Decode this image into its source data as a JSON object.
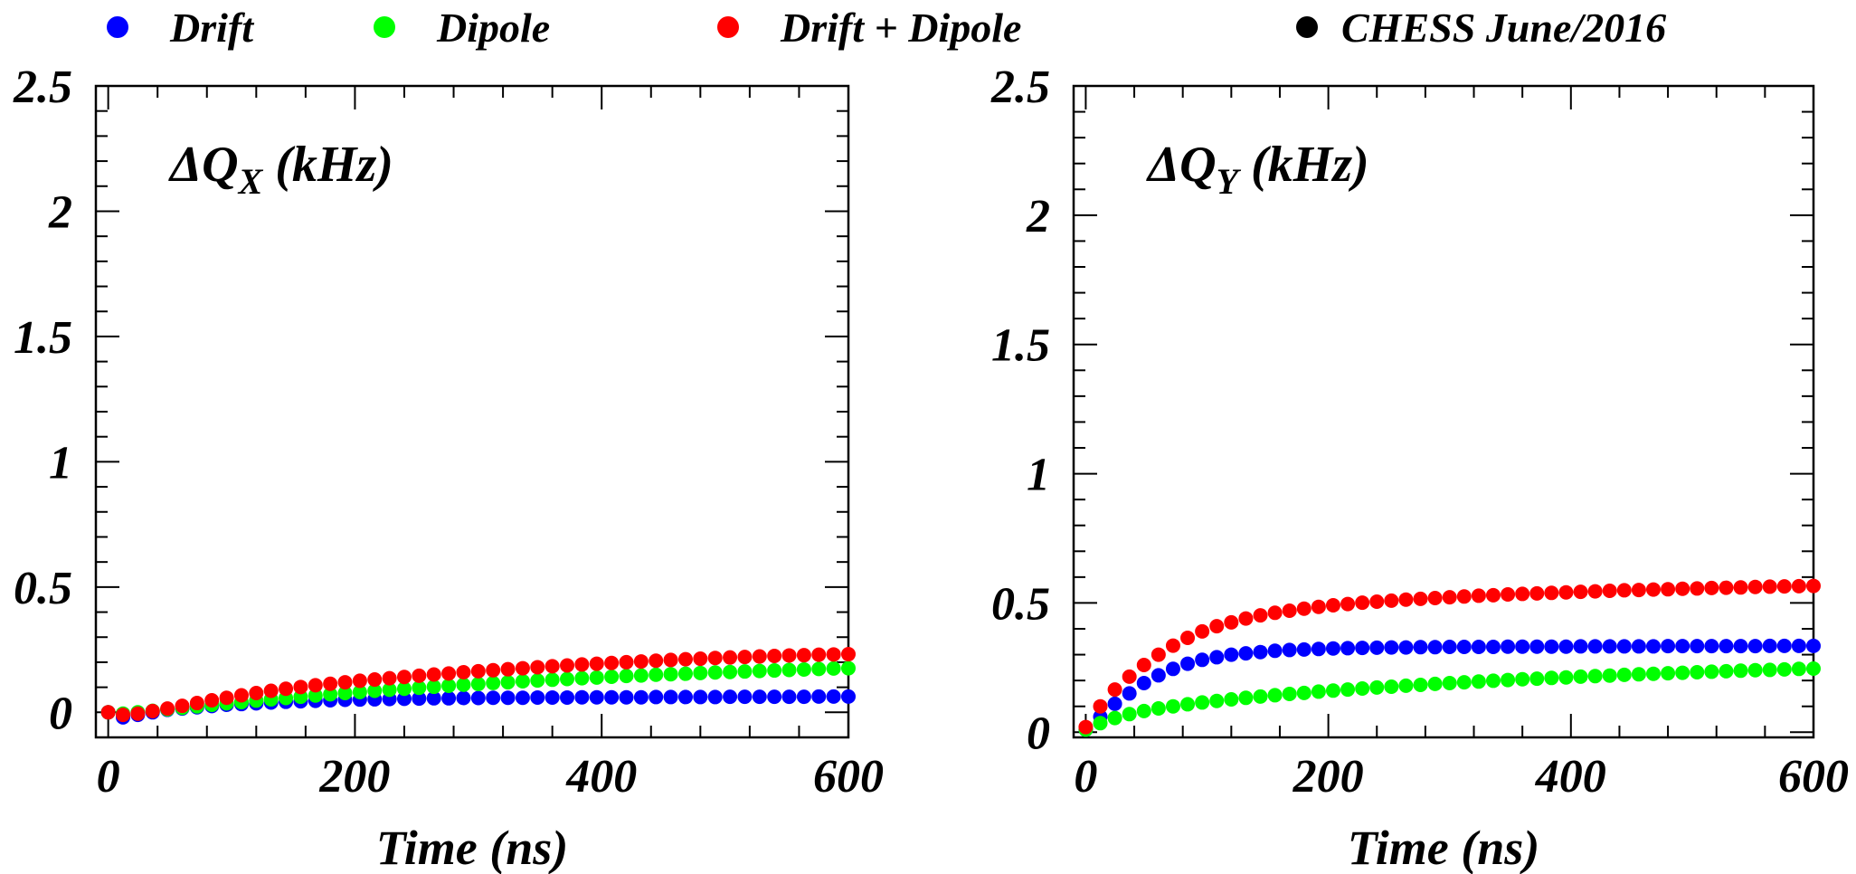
{
  "legend": {
    "placement": "top",
    "entries": [
      {
        "label": "Drift",
        "color": "#0000ff"
      },
      {
        "label": "Dipole",
        "color": "#00ff00"
      },
      {
        "label": "Drift + Dipole",
        "color": "#ff0000"
      },
      {
        "label": "CHESS June/2016",
        "color": "#000000"
      }
    ]
  },
  "chart_data": [
    {
      "type": "scatter",
      "title": "ΔQ",
      "title_sub": "X",
      "title_unit": "(kHz)",
      "xlabel": "Time (ns)",
      "xlim": [
        -10,
        600
      ],
      "ylim": [
        -0.1,
        2.5
      ],
      "xticks": [
        "0",
        "200",
        "400",
        "600"
      ],
      "yticks": [
        "0",
        "0.5",
        "1",
        "1.5",
        "2",
        "2.5"
      ],
      "grid": false,
      "x": [
        0,
        12,
        24,
        36,
        48,
        60,
        72,
        84,
        96,
        108,
        120,
        132,
        144,
        156,
        168,
        180,
        192,
        204,
        216,
        228,
        240,
        252,
        264,
        276,
        288,
        300,
        312,
        324,
        336,
        348,
        360,
        372,
        384,
        396,
        408,
        420,
        432,
        444,
        456,
        468,
        480,
        492,
        504,
        516,
        528,
        540,
        552,
        564,
        576,
        588,
        600
      ],
      "series": [
        {
          "name": "Drift",
          "color": "#0000ff",
          "values": [
            0.0,
            -0.02,
            -0.01,
            0.0,
            0.01,
            0.015,
            0.02,
            0.025,
            0.03,
            0.033,
            0.036,
            0.039,
            0.042,
            0.044,
            0.046,
            0.048,
            0.05,
            0.051,
            0.052,
            0.053,
            0.054,
            0.055,
            0.056,
            0.056,
            0.057,
            0.057,
            0.058,
            0.058,
            0.058,
            0.059,
            0.059,
            0.059,
            0.06,
            0.06,
            0.06,
            0.06,
            0.06,
            0.061,
            0.061,
            0.061,
            0.061,
            0.061,
            0.062,
            0.062,
            0.062,
            0.062,
            0.062,
            0.062,
            0.063,
            0.063,
            0.063
          ]
        },
        {
          "name": "Dipole",
          "color": "#00ff00",
          "values": [
            0.0,
            -0.005,
            0.0,
            0.006,
            0.012,
            0.018,
            0.024,
            0.03,
            0.036,
            0.041,
            0.047,
            0.052,
            0.057,
            0.062,
            0.067,
            0.072,
            0.077,
            0.081,
            0.086,
            0.09,
            0.094,
            0.098,
            0.102,
            0.106,
            0.11,
            0.113,
            0.117,
            0.12,
            0.124,
            0.127,
            0.13,
            0.133,
            0.136,
            0.139,
            0.142,
            0.145,
            0.147,
            0.15,
            0.152,
            0.154,
            0.157,
            0.159,
            0.161,
            0.163,
            0.165,
            0.167,
            0.169,
            0.171,
            0.173,
            0.175,
            0.176
          ]
        },
        {
          "name": "Drift + Dipole",
          "color": "#ff0000",
          "values": [
            0.0,
            -0.01,
            -0.005,
            0.005,
            0.015,
            0.026,
            0.037,
            0.048,
            0.058,
            0.068,
            0.077,
            0.086,
            0.094,
            0.101,
            0.108,
            0.114,
            0.12,
            0.126,
            0.131,
            0.136,
            0.141,
            0.146,
            0.151,
            0.155,
            0.16,
            0.164,
            0.168,
            0.172,
            0.176,
            0.18,
            0.184,
            0.187,
            0.191,
            0.194,
            0.197,
            0.2,
            0.203,
            0.206,
            0.209,
            0.212,
            0.214,
            0.217,
            0.219,
            0.221,
            0.223,
            0.225,
            0.227,
            0.228,
            0.23,
            0.231,
            0.232
          ]
        }
      ]
    },
    {
      "type": "scatter",
      "title": "ΔQ",
      "title_sub": "Y",
      "title_unit": "(kHz)",
      "xlabel": "Time (ns)",
      "xlim": [
        -10,
        600
      ],
      "ylim": [
        -0.02,
        2.5
      ],
      "xticks": [
        "0",
        "200",
        "400",
        "600"
      ],
      "yticks": [
        "0",
        "0.5",
        "1",
        "1.5",
        "2",
        "2.5"
      ],
      "grid": false,
      "x": [
        0,
        12,
        24,
        36,
        48,
        60,
        72,
        84,
        96,
        108,
        120,
        132,
        144,
        156,
        168,
        180,
        192,
        204,
        216,
        228,
        240,
        252,
        264,
        276,
        288,
        300,
        312,
        324,
        336,
        348,
        360,
        372,
        384,
        396,
        408,
        420,
        432,
        444,
        456,
        468,
        480,
        492,
        504,
        516,
        528,
        540,
        552,
        564,
        576,
        588,
        600
      ],
      "series": [
        {
          "name": "Drift",
          "color": "#0000ff",
          "values": [
            0.01,
            0.06,
            0.11,
            0.15,
            0.19,
            0.22,
            0.245,
            0.265,
            0.28,
            0.29,
            0.3,
            0.305,
            0.31,
            0.315,
            0.318,
            0.32,
            0.322,
            0.324,
            0.325,
            0.326,
            0.327,
            0.328,
            0.328,
            0.329,
            0.329,
            0.33,
            0.33,
            0.33,
            0.33,
            0.331,
            0.331,
            0.331,
            0.331,
            0.331,
            0.332,
            0.332,
            0.332,
            0.332,
            0.332,
            0.332,
            0.333,
            0.333,
            0.333,
            0.333,
            0.333,
            0.333,
            0.333,
            0.334,
            0.334,
            0.334,
            0.334
          ]
        },
        {
          "name": "Dipole",
          "color": "#00ff00",
          "values": [
            0.01,
            0.035,
            0.055,
            0.07,
            0.082,
            0.092,
            0.1,
            0.108,
            0.115,
            0.121,
            0.127,
            0.133,
            0.138,
            0.143,
            0.148,
            0.152,
            0.157,
            0.161,
            0.165,
            0.169,
            0.173,
            0.176,
            0.18,
            0.183,
            0.187,
            0.19,
            0.193,
            0.196,
            0.199,
            0.202,
            0.205,
            0.207,
            0.21,
            0.212,
            0.215,
            0.217,
            0.219,
            0.222,
            0.224,
            0.226,
            0.228,
            0.23,
            0.232,
            0.234,
            0.236,
            0.238,
            0.24,
            0.241,
            0.243,
            0.245,
            0.246
          ]
        },
        {
          "name": "Drift + Dipole",
          "color": "#ff0000",
          "values": [
            0.02,
            0.1,
            0.165,
            0.215,
            0.26,
            0.3,
            0.335,
            0.365,
            0.39,
            0.41,
            0.425,
            0.44,
            0.452,
            0.462,
            0.47,
            0.478,
            0.485,
            0.491,
            0.496,
            0.501,
            0.505,
            0.509,
            0.513,
            0.516,
            0.519,
            0.522,
            0.525,
            0.528,
            0.53,
            0.533,
            0.535,
            0.537,
            0.539,
            0.541,
            0.543,
            0.545,
            0.547,
            0.549,
            0.55,
            0.552,
            0.553,
            0.555,
            0.556,
            0.558,
            0.559,
            0.56,
            0.562,
            0.563,
            0.564,
            0.565,
            0.566
          ]
        }
      ]
    }
  ]
}
